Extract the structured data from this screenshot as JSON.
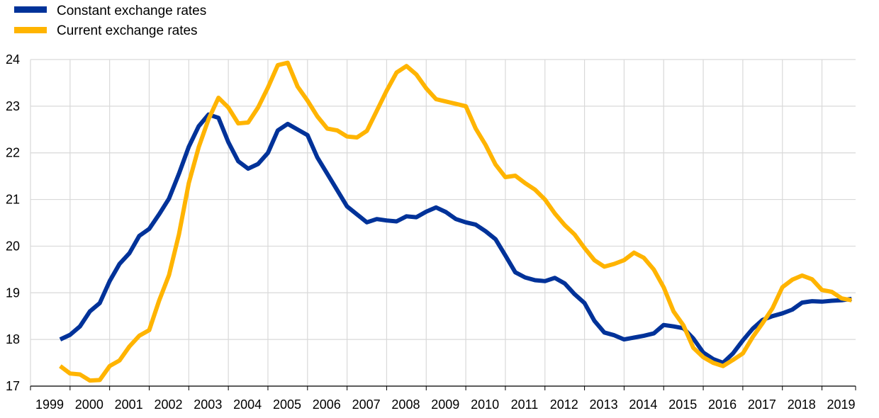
{
  "chart_data": {
    "type": "line",
    "title": "",
    "xlabel": "",
    "ylabel": "",
    "grid": true,
    "legend_position": "top-left",
    "xlim": [
      1999,
      2019.85
    ],
    "ylim": [
      17,
      24
    ],
    "x_ticks": [
      1999,
      2000,
      2001,
      2002,
      2003,
      2004,
      2005,
      2006,
      2007,
      2008,
      2009,
      2010,
      2011,
      2012,
      2013,
      2014,
      2015,
      2016,
      2017,
      2018,
      2019
    ],
    "y_ticks": [
      17,
      18,
      19,
      20,
      21,
      22,
      23,
      24
    ],
    "series": [
      {
        "name": "Constant exchange rates",
        "color": "#003299",
        "x": [
          1999.75,
          2000.0,
          2000.25,
          2000.5,
          2000.75,
          2001.0,
          2001.25,
          2001.5,
          2001.75,
          2002.0,
          2002.25,
          2002.5,
          2002.75,
          2003.0,
          2003.25,
          2003.5,
          2003.75,
          2004.0,
          2004.25,
          2004.5,
          2004.75,
          2005.0,
          2005.25,
          2005.5,
          2005.75,
          2006.0,
          2006.25,
          2006.5,
          2006.75,
          2007.0,
          2007.25,
          2007.5,
          2007.75,
          2008.0,
          2008.25,
          2008.5,
          2008.75,
          2009.0,
          2009.25,
          2009.5,
          2009.75,
          2010.0,
          2010.25,
          2010.5,
          2010.75,
          2011.0,
          2011.25,
          2011.5,
          2011.75,
          2012.0,
          2012.25,
          2012.5,
          2012.75,
          2013.0,
          2013.25,
          2013.5,
          2013.75,
          2014.0,
          2014.25,
          2014.5,
          2014.75,
          2015.0,
          2015.25,
          2015.5,
          2015.75,
          2016.0,
          2016.25,
          2016.5,
          2016.75,
          2017.0,
          2017.25,
          2017.5,
          2017.75,
          2018.0,
          2018.25,
          2018.5,
          2018.75,
          2019.0,
          2019.25,
          2019.5,
          2019.75
        ],
        "values": [
          18.0,
          18.1,
          18.28,
          18.6,
          18.78,
          19.25,
          19.62,
          19.85,
          20.22,
          20.37,
          20.68,
          21.02,
          21.55,
          22.13,
          22.57,
          22.82,
          22.75,
          22.23,
          21.82,
          21.66,
          21.76,
          22.0,
          22.48,
          22.62,
          22.5,
          22.38,
          21.9,
          21.55,
          21.2,
          20.85,
          20.68,
          20.51,
          20.58,
          20.55,
          20.53,
          20.64,
          20.62,
          20.74,
          20.83,
          20.73,
          20.58,
          20.51,
          20.46,
          20.32,
          20.15,
          19.8,
          19.44,
          19.33,
          19.27,
          19.25,
          19.32,
          19.2,
          18.97,
          18.78,
          18.4,
          18.15,
          18.09,
          18.0,
          18.04,
          18.08,
          18.13,
          18.31,
          18.28,
          18.24,
          18.02,
          17.72,
          17.58,
          17.5,
          17.7,
          17.98,
          18.23,
          18.42,
          18.5,
          18.56,
          18.64,
          18.79,
          18.82,
          18.81,
          18.83,
          18.84,
          18.87
        ]
      },
      {
        "name": "Current exchange rates",
        "color": "#FFB400",
        "x": [
          1999.75,
          2000.0,
          2000.25,
          2000.5,
          2000.75,
          2001.0,
          2001.25,
          2001.5,
          2001.75,
          2002.0,
          2002.25,
          2002.5,
          2002.75,
          2003.0,
          2003.25,
          2003.5,
          2003.75,
          2004.0,
          2004.25,
          2004.5,
          2004.75,
          2005.0,
          2005.25,
          2005.5,
          2005.75,
          2006.0,
          2006.25,
          2006.5,
          2006.75,
          2007.0,
          2007.25,
          2007.5,
          2007.75,
          2008.0,
          2008.25,
          2008.5,
          2008.75,
          2009.0,
          2009.25,
          2009.5,
          2009.75,
          2010.0,
          2010.25,
          2010.5,
          2010.75,
          2011.0,
          2011.25,
          2011.5,
          2011.75,
          2012.0,
          2012.25,
          2012.5,
          2012.75,
          2013.0,
          2013.25,
          2013.5,
          2013.75,
          2014.0,
          2014.25,
          2014.5,
          2014.75,
          2015.0,
          2015.25,
          2015.5,
          2015.75,
          2016.0,
          2016.25,
          2016.5,
          2016.75,
          2017.0,
          2017.25,
          2017.5,
          2017.75,
          2018.0,
          2018.25,
          2018.5,
          2018.75,
          2019.0,
          2019.25,
          2019.5,
          2019.75
        ],
        "values": [
          17.43,
          17.27,
          17.25,
          17.12,
          17.13,
          17.43,
          17.55,
          17.85,
          18.08,
          18.2,
          18.83,
          19.38,
          20.25,
          21.35,
          22.12,
          22.72,
          23.18,
          22.97,
          22.63,
          22.65,
          22.97,
          23.4,
          23.88,
          23.93,
          23.42,
          23.12,
          22.78,
          22.52,
          22.48,
          22.35,
          22.33,
          22.47,
          22.9,
          23.33,
          23.72,
          23.86,
          23.68,
          23.38,
          23.15,
          23.1,
          23.05,
          23.0,
          22.52,
          22.17,
          21.75,
          21.48,
          21.51,
          21.35,
          21.21,
          21.0,
          20.7,
          20.45,
          20.25,
          19.96,
          19.7,
          19.56,
          19.62,
          19.7,
          19.86,
          19.75,
          19.5,
          19.12,
          18.6,
          18.3,
          17.82,
          17.62,
          17.5,
          17.43,
          17.56,
          17.7,
          18.05,
          18.35,
          18.67,
          19.12,
          19.28,
          19.37,
          19.29,
          19.06,
          19.02,
          18.88,
          18.84
        ]
      }
    ]
  }
}
